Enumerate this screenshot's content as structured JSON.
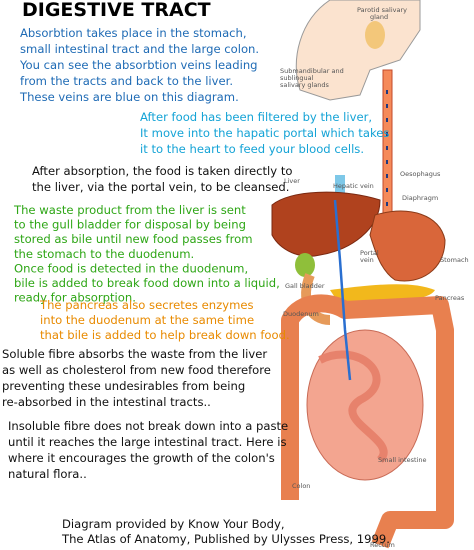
{
  "title": "DIGESTIVE TRACT",
  "blocks": [
    {
      "lines": [
        "Absorbtion takes place in the stomach,",
        "small intestinal tract and the large colon.",
        "You can see the absorbtion veins leading",
        "from the tracts and back to the liver.",
        "These veins are blue on this diagram."
      ]
    },
    {
      "lines": [
        "After food has been filtered by the liver,",
        "It move into the hapatic portal which takes",
        "it to the heart to feed your blood cells."
      ]
    },
    {
      "lines": [
        "After absorption, the food is taken directly to",
        "the liver, via the portal vein, to be cleansed."
      ]
    },
    {
      "lines": [
        "The waste product from the liver is sent",
        "to the gull bladder for disposal by being",
        "stored as bile until new food passes from",
        "the stomach to the duodenum.",
        "Once food is detected in the duodenum,",
        "bile is added to break food down into a liquid,",
        "ready for absorption."
      ]
    },
    {
      "lines": [
        "The pancreas also secretes enzymes",
        "into the duodenum at the same time",
        "that bile is added to help break down food."
      ]
    },
    {
      "lines": [
        "Soluble fibre absorbs the waste from the liver",
        "as well as cholesterol from new food therefore",
        "preventing these undesirables from being",
        "re-absorbed in the intestinal tracts.."
      ]
    },
    {
      "lines": [
        "Insoluble fibre does not break down into a paste",
        "until it reaches the large intestinal tract.  Here is",
        "where it encourages the growth of the colon's",
        "natural flora.."
      ]
    },
    {
      "lines": [
        "Diagram provided by Know Your Body,",
        "The Atlas of Anatomy, Published by Ulysses Press, 1999."
      ]
    }
  ],
  "labels": [
    "Parotid salivary",
    "gland",
    "Submandibular and",
    "sublingual",
    "salivary glands",
    "Oesophagus",
    "Hepatic vein",
    "Liver",
    "Diaphragm",
    "Portal",
    "vein",
    "Gall bladder",
    "Stomach",
    "Pancreas",
    "Duodenum",
    "Small intestine",
    "Colon",
    "Rectum"
  ]
}
